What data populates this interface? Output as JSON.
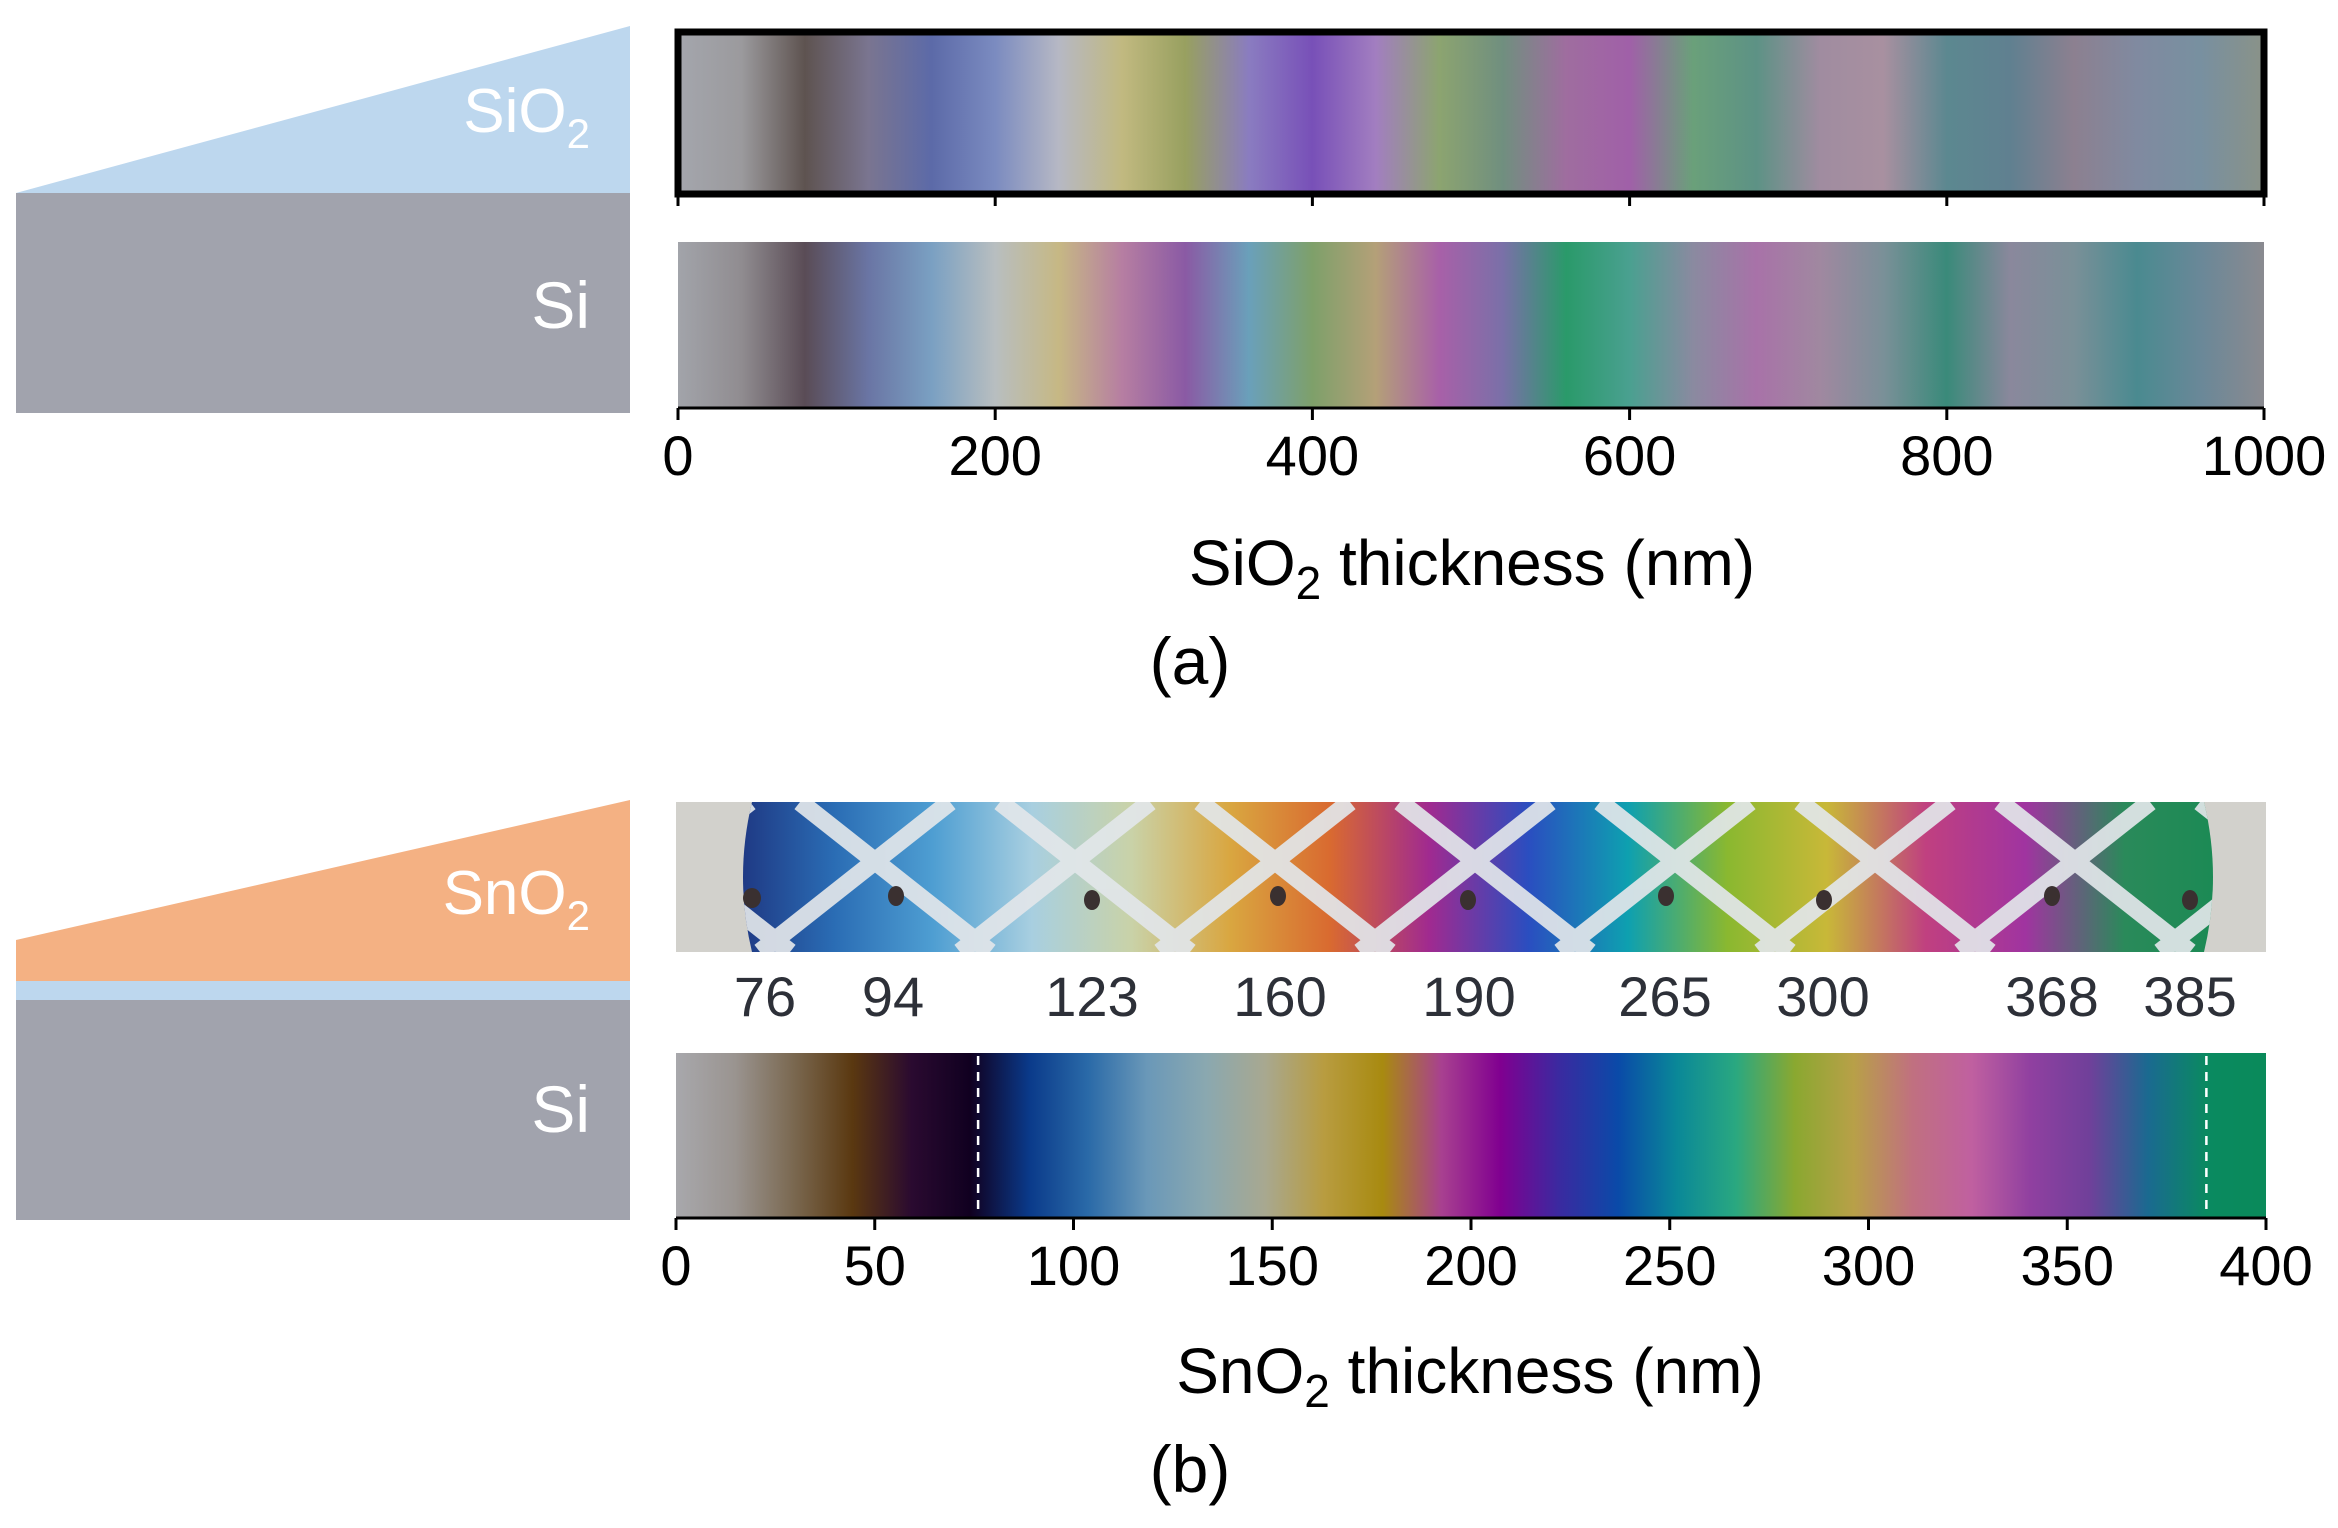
{
  "panel_a": {
    "caption": "(a)",
    "layers": {
      "top_label_main": "SiO",
      "top_label_sub": "2",
      "substrate_label": "Si"
    },
    "axis": {
      "ticks": [
        "0",
        "200",
        "400",
        "600",
        "800",
        "1000"
      ],
      "min": 0,
      "max": 1000,
      "title_main": "SiO",
      "title_sub": "2",
      "title_tail": " thickness  (nm)"
    },
    "measured_strip_colors": [
      "#a4a6ad",
      "#9b9a9d",
      "#5e5350",
      "#7a7590",
      "#5c6aa8",
      "#7b8bc0",
      "#b6b8c4",
      "#c1b980",
      "#98a060",
      "#8a7cc0",
      "#7850b8",
      "#a27ec0",
      "#8ca470",
      "#708f7f",
      "#9f6d9f",
      "#a060a8",
      "#6aa07a",
      "#5d9285",
      "#a08ca0",
      "#a890a0",
      "#5c8890",
      "#608090",
      "#8c8090",
      "#808aa0",
      "#7890a0",
      "#8a9288"
    ],
    "simulated_strip_colors": [
      "#a2a4aa",
      "#908c90",
      "#5a4c56",
      "#6a75a4",
      "#7aa0c2",
      "#b8bec0",
      "#c6b884",
      "#b67ea2",
      "#8a5aa4",
      "#6aa0ba",
      "#7ea06a",
      "#b4a078",
      "#a860a8",
      "#7a70a8",
      "#2a9a6a",
      "#4aa090",
      "#8a8aa0",
      "#a872a8",
      "#a088a0",
      "#7a9098",
      "#3a8a7a",
      "#8a889c",
      "#7a9098",
      "#4a8a90",
      "#6a8898",
      "#8a8a90"
    ]
  },
  "panel_b": {
    "caption": "(b)",
    "layers": {
      "top_label_main": "SnO",
      "top_label_sub": "2",
      "substrate_label": "Si"
    },
    "sample_thickness_labels": [
      "76",
      "94",
      "123",
      "160",
      "190",
      "265",
      "300",
      "368",
      "385"
    ],
    "sample_thickness_values": [
      76,
      94,
      123,
      160,
      190,
      265,
      300,
      368,
      385
    ],
    "wafer_colors": [
      "#1e3580",
      "#2a6cb4",
      "#4e9ed2",
      "#a8cfe0",
      "#c9d2a8",
      "#d9a640",
      "#d96a30",
      "#a02a90",
      "#2a4ec0",
      "#0ea0b0",
      "#8ab830",
      "#c8b838",
      "#c04080",
      "#a034a0",
      "#2a8a5a",
      "#1a8a54"
    ],
    "marker_lines_at": [
      76,
      385
    ],
    "axis": {
      "ticks": [
        "0",
        "50",
        "100",
        "150",
        "200",
        "250",
        "300",
        "350",
        "400"
      ],
      "min": 0,
      "max": 400,
      "title_main": "SnO",
      "title_sub": "2",
      "title_tail": " thickness  (nm)"
    },
    "simulated_strip_colors": [
      "#a8a8ac",
      "#9a9490",
      "#7a6850",
      "#5a3810",
      "#2a0a30",
      "#100020",
      "#0a3a8a",
      "#2a6aa8",
      "#6a98b8",
      "#8aa8b0",
      "#a8a890",
      "#b89c40",
      "#a88a10",
      "#a84090",
      "#800090",
      "#3a2aa0",
      "#0a4aa8",
      "#0a8898",
      "#2aa880",
      "#8aa830",
      "#b8a048",
      "#c07080",
      "#c060a0",
      "#9040a0",
      "#70409a",
      "#1a6a90",
      "#0a8a60",
      "#0a8a5a"
    ],
    "colors": {
      "sno2_layer": "#f4b183",
      "sio2_thin_layer": "#bdd7ee",
      "si_substrate": "#a1a3ad"
    }
  }
}
